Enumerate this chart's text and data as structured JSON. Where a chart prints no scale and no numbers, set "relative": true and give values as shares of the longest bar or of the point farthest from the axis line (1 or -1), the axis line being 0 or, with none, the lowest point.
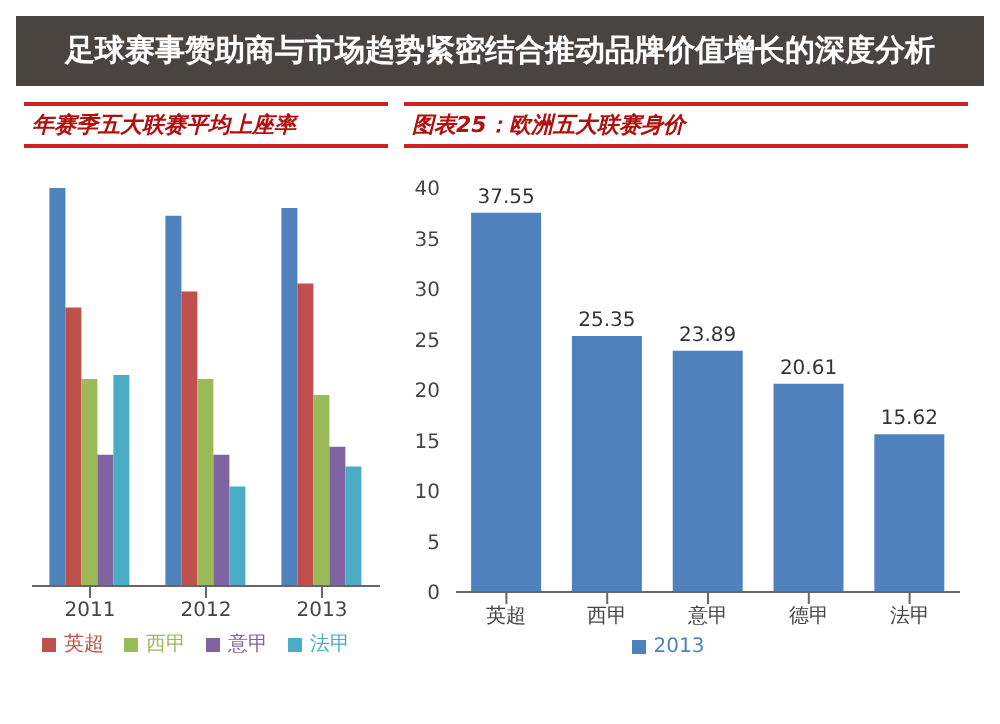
{
  "chart_data": [
    {
      "type": "bar",
      "title": "年赛季五大联赛平均上座率",
      "relative": true,
      "categories": [
        "2011",
        "2012",
        "2013"
      ],
      "legend": "bottom",
      "series": [
        {
          "color": "#4f81bd",
          "values": [
            1,
            0.93,
            0.95
          ]
        },
        {
          "name": "英超",
          "color": "#c0504d",
          "values": [
            0.7,
            0.74,
            0.76
          ]
        },
        {
          "name": "西甲",
          "color": "#9bbb59",
          "values": [
            0.52,
            0.52,
            0.48
          ]
        },
        {
          "name": "意甲",
          "color": "#8064a2",
          "values": [
            0.33,
            0.33,
            0.35
          ]
        },
        {
          "name": "法甲",
          "color": "#4bacc6",
          "values": [
            0.53,
            0.25,
            0.3
          ]
        }
      ]
    },
    {
      "type": "bar",
      "title": "图表25：欧洲五大联赛身价",
      "categories": [
        "英超",
        "西甲",
        "意甲",
        "德甲",
        "法甲"
      ],
      "legend": "bottom",
      "data_labels": true,
      "ylim": [
        0,
        40
      ],
      "yticks": [
        0,
        5,
        10,
        15,
        20,
        25,
        30,
        35,
        40
      ],
      "series": [
        {
          "name": "2013",
          "color": "#4f81bd",
          "values": [
            37.55,
            25.35,
            23.89,
            20.61,
            15.62
          ]
        }
      ]
    },
    {
      "type": "other",
      "title": "足球赛事赞助商与市场趋势紧密结合推动品牌价值增长的深度分析"
    }
  ]
}
